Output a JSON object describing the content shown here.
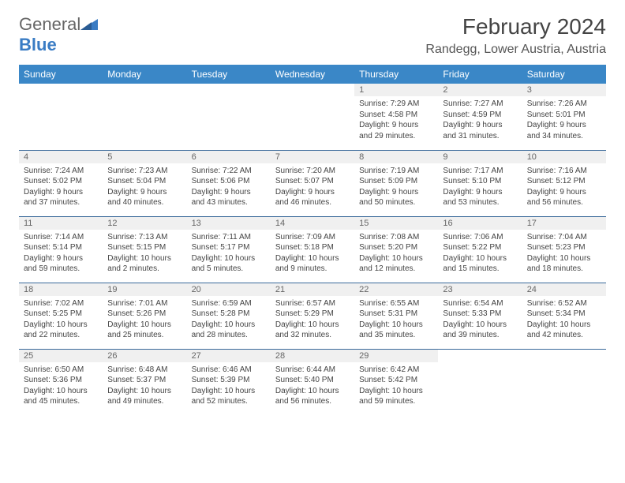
{
  "brand": {
    "word1": "General",
    "word2": "Blue"
  },
  "title": "February 2024",
  "location": "Randegg, Lower Austria, Austria",
  "colors": {
    "header_bg": "#3a87c7",
    "header_fg": "#ffffff",
    "row_border": "#3a6a9a",
    "daynum_bg": "#f0f0f0",
    "daynum_fg": "#666666",
    "body_bg": "#ffffff",
    "text": "#444444",
    "brand_gray": "#666666",
    "brand_blue": "#3a7cc4"
  },
  "typography": {
    "title_fontsize": 28,
    "location_fontsize": 16,
    "header_fontsize": 12,
    "daynum_fontsize": 11,
    "cell_fontsize": 10,
    "logo_fontsize": 22
  },
  "weekdays": [
    "Sunday",
    "Monday",
    "Tuesday",
    "Wednesday",
    "Thursday",
    "Friday",
    "Saturday"
  ],
  "weeks": [
    [
      null,
      null,
      null,
      null,
      {
        "day": "1",
        "sunrise": "Sunrise: 7:29 AM",
        "sunset": "Sunset: 4:58 PM",
        "daylight1": "Daylight: 9 hours",
        "daylight2": "and 29 minutes."
      },
      {
        "day": "2",
        "sunrise": "Sunrise: 7:27 AM",
        "sunset": "Sunset: 4:59 PM",
        "daylight1": "Daylight: 9 hours",
        "daylight2": "and 31 minutes."
      },
      {
        "day": "3",
        "sunrise": "Sunrise: 7:26 AM",
        "sunset": "Sunset: 5:01 PM",
        "daylight1": "Daylight: 9 hours",
        "daylight2": "and 34 minutes."
      }
    ],
    [
      {
        "day": "4",
        "sunrise": "Sunrise: 7:24 AM",
        "sunset": "Sunset: 5:02 PM",
        "daylight1": "Daylight: 9 hours",
        "daylight2": "and 37 minutes."
      },
      {
        "day": "5",
        "sunrise": "Sunrise: 7:23 AM",
        "sunset": "Sunset: 5:04 PM",
        "daylight1": "Daylight: 9 hours",
        "daylight2": "and 40 minutes."
      },
      {
        "day": "6",
        "sunrise": "Sunrise: 7:22 AM",
        "sunset": "Sunset: 5:06 PM",
        "daylight1": "Daylight: 9 hours",
        "daylight2": "and 43 minutes."
      },
      {
        "day": "7",
        "sunrise": "Sunrise: 7:20 AM",
        "sunset": "Sunset: 5:07 PM",
        "daylight1": "Daylight: 9 hours",
        "daylight2": "and 46 minutes."
      },
      {
        "day": "8",
        "sunrise": "Sunrise: 7:19 AM",
        "sunset": "Sunset: 5:09 PM",
        "daylight1": "Daylight: 9 hours",
        "daylight2": "and 50 minutes."
      },
      {
        "day": "9",
        "sunrise": "Sunrise: 7:17 AM",
        "sunset": "Sunset: 5:10 PM",
        "daylight1": "Daylight: 9 hours",
        "daylight2": "and 53 minutes."
      },
      {
        "day": "10",
        "sunrise": "Sunrise: 7:16 AM",
        "sunset": "Sunset: 5:12 PM",
        "daylight1": "Daylight: 9 hours",
        "daylight2": "and 56 minutes."
      }
    ],
    [
      {
        "day": "11",
        "sunrise": "Sunrise: 7:14 AM",
        "sunset": "Sunset: 5:14 PM",
        "daylight1": "Daylight: 9 hours",
        "daylight2": "and 59 minutes."
      },
      {
        "day": "12",
        "sunrise": "Sunrise: 7:13 AM",
        "sunset": "Sunset: 5:15 PM",
        "daylight1": "Daylight: 10 hours",
        "daylight2": "and 2 minutes."
      },
      {
        "day": "13",
        "sunrise": "Sunrise: 7:11 AM",
        "sunset": "Sunset: 5:17 PM",
        "daylight1": "Daylight: 10 hours",
        "daylight2": "and 5 minutes."
      },
      {
        "day": "14",
        "sunrise": "Sunrise: 7:09 AM",
        "sunset": "Sunset: 5:18 PM",
        "daylight1": "Daylight: 10 hours",
        "daylight2": "and 9 minutes."
      },
      {
        "day": "15",
        "sunrise": "Sunrise: 7:08 AM",
        "sunset": "Sunset: 5:20 PM",
        "daylight1": "Daylight: 10 hours",
        "daylight2": "and 12 minutes."
      },
      {
        "day": "16",
        "sunrise": "Sunrise: 7:06 AM",
        "sunset": "Sunset: 5:22 PM",
        "daylight1": "Daylight: 10 hours",
        "daylight2": "and 15 minutes."
      },
      {
        "day": "17",
        "sunrise": "Sunrise: 7:04 AM",
        "sunset": "Sunset: 5:23 PM",
        "daylight1": "Daylight: 10 hours",
        "daylight2": "and 18 minutes."
      }
    ],
    [
      {
        "day": "18",
        "sunrise": "Sunrise: 7:02 AM",
        "sunset": "Sunset: 5:25 PM",
        "daylight1": "Daylight: 10 hours",
        "daylight2": "and 22 minutes."
      },
      {
        "day": "19",
        "sunrise": "Sunrise: 7:01 AM",
        "sunset": "Sunset: 5:26 PM",
        "daylight1": "Daylight: 10 hours",
        "daylight2": "and 25 minutes."
      },
      {
        "day": "20",
        "sunrise": "Sunrise: 6:59 AM",
        "sunset": "Sunset: 5:28 PM",
        "daylight1": "Daylight: 10 hours",
        "daylight2": "and 28 minutes."
      },
      {
        "day": "21",
        "sunrise": "Sunrise: 6:57 AM",
        "sunset": "Sunset: 5:29 PM",
        "daylight1": "Daylight: 10 hours",
        "daylight2": "and 32 minutes."
      },
      {
        "day": "22",
        "sunrise": "Sunrise: 6:55 AM",
        "sunset": "Sunset: 5:31 PM",
        "daylight1": "Daylight: 10 hours",
        "daylight2": "and 35 minutes."
      },
      {
        "day": "23",
        "sunrise": "Sunrise: 6:54 AM",
        "sunset": "Sunset: 5:33 PM",
        "daylight1": "Daylight: 10 hours",
        "daylight2": "and 39 minutes."
      },
      {
        "day": "24",
        "sunrise": "Sunrise: 6:52 AM",
        "sunset": "Sunset: 5:34 PM",
        "daylight1": "Daylight: 10 hours",
        "daylight2": "and 42 minutes."
      }
    ],
    [
      {
        "day": "25",
        "sunrise": "Sunrise: 6:50 AM",
        "sunset": "Sunset: 5:36 PM",
        "daylight1": "Daylight: 10 hours",
        "daylight2": "and 45 minutes."
      },
      {
        "day": "26",
        "sunrise": "Sunrise: 6:48 AM",
        "sunset": "Sunset: 5:37 PM",
        "daylight1": "Daylight: 10 hours",
        "daylight2": "and 49 minutes."
      },
      {
        "day": "27",
        "sunrise": "Sunrise: 6:46 AM",
        "sunset": "Sunset: 5:39 PM",
        "daylight1": "Daylight: 10 hours",
        "daylight2": "and 52 minutes."
      },
      {
        "day": "28",
        "sunrise": "Sunrise: 6:44 AM",
        "sunset": "Sunset: 5:40 PM",
        "daylight1": "Daylight: 10 hours",
        "daylight2": "and 56 minutes."
      },
      {
        "day": "29",
        "sunrise": "Sunrise: 6:42 AM",
        "sunset": "Sunset: 5:42 PM",
        "daylight1": "Daylight: 10 hours",
        "daylight2": "and 59 minutes."
      },
      null,
      null
    ]
  ]
}
